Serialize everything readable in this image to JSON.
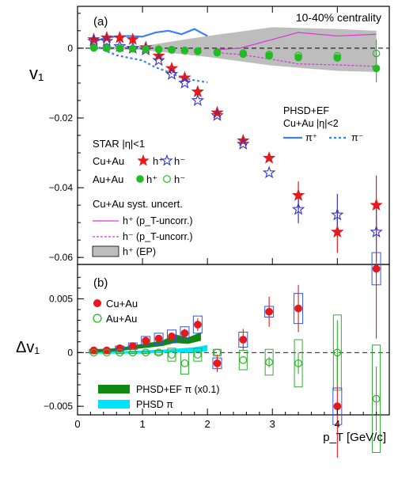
{
  "colors": {
    "cuau_h": "#e41a1c",
    "star_hm": "#3333cc",
    "auau": "#22bb22",
    "phsd_pi": "#3a7fff",
    "syst_pion": "#dd33dd",
    "ep_band": "#bdbdbd",
    "phsdef_dv": "#118811",
    "phsd_dv": "#00e5ff",
    "box_blue": "#3355dd",
    "box_green": "#33aa33"
  },
  "chart_data": [
    {
      "type": "scatter",
      "panel_label": "(a)",
      "annotation": "10-40% centrality",
      "ylabel": "v₁",
      "xlim": [
        0,
        4.8
      ],
      "ylim": [
        -0.062,
        0.012
      ],
      "y_ticks": [
        0,
        -0.02,
        -0.04,
        -0.06
      ],
      "y_tick_labels": [
        "0",
        "−0.02",
        "−0.04",
        "−0.06"
      ],
      "legend_star": {
        "header": "STAR |η|<1",
        "cuau_label": "Cu+Au",
        "auau_label": "Au+Au",
        "hplus": "h⁺",
        "hminus": "h⁻"
      },
      "legend_syst": {
        "header": "Cu+Au syst. uncert.",
        "hplus_uncorr": "h⁺ (p_T-uncorr.)",
        "hminus_uncorr": "h⁻ (p_T-uncorr.)",
        "ep": "h⁺ (EP)"
      },
      "legend_model": {
        "header": "PHSD+EF",
        "system": "Cu+Au |η|<2",
        "piplus": "π⁺",
        "piminus": "π⁻"
      },
      "series": [
        {
          "name": "Cu+Au h⁺",
          "x": [
            0.25,
            0.45,
            0.65,
            0.85,
            1.05,
            1.25,
            1.45,
            1.65,
            1.85,
            2.15,
            2.55,
            2.95,
            3.4,
            4.0,
            4.6
          ],
          "y": [
            0.0025,
            0.003,
            0.003,
            0.0025,
            0.0002,
            -0.0022,
            -0.0058,
            -0.0085,
            -0.0125,
            -0.0185,
            -0.0265,
            -0.0315,
            -0.0422,
            -0.0527,
            -0.045
          ],
          "yerr": [
            0,
            0,
            0,
            0,
            0,
            0,
            0,
            0,
            0,
            0,
            0,
            0,
            0.004,
            0.006,
            0.0085
          ]
        },
        {
          "name": "Cu+Au h⁻",
          "x": [
            0.25,
            0.45,
            0.65,
            0.85,
            1.05,
            1.25,
            1.45,
            1.65,
            1.85,
            2.15,
            2.55,
            2.95,
            3.4,
            4.0,
            4.6
          ],
          "y": [
            0.002,
            0.002,
            0.0005,
            0.0,
            -0.0005,
            -0.0035,
            -0.0075,
            -0.01,
            -0.015,
            -0.0193,
            -0.0275,
            -0.0357,
            -0.0462,
            -0.0478,
            -0.0527
          ],
          "yerr": [
            0,
            0,
            0,
            0,
            0,
            0,
            0,
            0,
            0,
            0,
            0,
            0,
            0.004,
            0.006,
            0.0085
          ]
        },
        {
          "name": "Au+Au h⁺",
          "x": [
            0.25,
            0.45,
            0.65,
            0.85,
            1.05,
            1.25,
            1.45,
            1.65,
            1.85,
            2.15,
            2.55,
            2.95,
            3.4,
            4.0,
            4.6
          ],
          "y": [
            0.0001,
            0.0,
            -0.0001,
            -0.0002,
            -0.0003,
            -0.0004,
            -0.0005,
            -0.0007,
            -0.0009,
            -0.0013,
            -0.0017,
            -0.0022,
            -0.0027,
            -0.0028,
            -0.0058
          ],
          "yerr": [
            0,
            0,
            0,
            0,
            0,
            0,
            0,
            0,
            0,
            0,
            0,
            0,
            0,
            0,
            0.004
          ]
        },
        {
          "name": "Au+Au h⁻",
          "x": [
            0.25,
            0.45,
            0.65,
            0.85,
            1.05,
            1.25,
            1.45,
            1.65,
            1.85,
            2.15,
            2.55,
            2.95,
            3.4,
            4.0,
            4.6
          ],
          "y": [
            0.0001,
            0.0,
            0.0,
            -0.0001,
            -0.0002,
            -0.0003,
            -0.0004,
            -0.0006,
            -0.0008,
            -0.0011,
            -0.0014,
            -0.0018,
            -0.0021,
            -0.0022,
            -0.0015
          ],
          "yerr": [
            0,
            0,
            0,
            0,
            0,
            0,
            0,
            0,
            0,
            0,
            0,
            0,
            0,
            0,
            0.004
          ]
        }
      ],
      "model_curves": [
        {
          "name": "π⁺",
          "x": [
            0.2,
            0.4,
            0.6,
            0.8,
            1.0,
            1.2,
            1.4,
            1.6,
            1.8,
            2.0
          ],
          "y": [
            0.0015,
            0.0028,
            0.0034,
            0.0035,
            0.0033,
            0.0045,
            0.005,
            0.004,
            0.0055,
            0.0035
          ]
        },
        {
          "name": "π⁻",
          "x": [
            0.2,
            0.4,
            0.6,
            0.8,
            1.0,
            1.2,
            1.4,
            1.6,
            1.8,
            2.0
          ],
          "y": [
            0.0015,
            -0.0005,
            -0.002,
            -0.0028,
            -0.0035,
            -0.0055,
            -0.0068,
            -0.0085,
            -0.0092,
            -0.0098
          ]
        }
      ],
      "syst_uncorr_upper": {
        "x": [
          2.1,
          2.5,
          3.0,
          3.4,
          4.0,
          4.6
        ],
        "y": [
          -0.0005,
          0.0,
          0.0025,
          0.0045,
          0.0035,
          0.004
        ]
      },
      "syst_uncorr_lower": {
        "x": [
          2.1,
          2.5,
          3.0,
          3.4,
          4.0,
          4.6
        ],
        "y": [
          -0.0012,
          -0.0018,
          -0.0032,
          -0.0045,
          -0.0048,
          -0.0052
        ]
      },
      "ep_band": {
        "x": [
          0.2,
          1.0,
          2.0,
          3.0,
          4.0,
          4.6
        ],
        "upper": [
          0.0004,
          0.0006,
          0.0035,
          0.006,
          0.0055,
          0.005
        ],
        "lower": [
          -0.0003,
          -0.0005,
          -0.0025,
          -0.005,
          -0.0065,
          -0.0068
        ]
      }
    },
    {
      "type": "scatter",
      "panel_label": "(b)",
      "ylabel": "Δv₁",
      "xlabel": "p_T [GeV/c]",
      "xlim": [
        0,
        4.8
      ],
      "ylim": [
        -0.0058,
        0.0082
      ],
      "x_ticks": [
        0,
        1,
        2,
        3,
        4
      ],
      "y_ticks": [
        0.005,
        0,
        -0.005
      ],
      "y_tick_labels": [
        "0.005",
        "0",
        "−0.005"
      ],
      "legend_data": {
        "cuau": "Cu+Au",
        "auau": "Au+Au"
      },
      "legend_model": {
        "phsdef": "PHSD+EF π (x0.1)",
        "phsd": "PHSD π"
      },
      "series": [
        {
          "name": "Cu+Au",
          "x": [
            0.25,
            0.45,
            0.65,
            0.85,
            1.05,
            1.25,
            1.45,
            1.65,
            1.85,
            2.15,
            2.55,
            2.95,
            3.4,
            4.0,
            4.6
          ],
          "y": [
            0.0002,
            0.0002,
            0.0004,
            0.0006,
            0.0011,
            0.0013,
            0.0015,
            0.0018,
            0.0026,
            -0.001,
            0.0012,
            0.0038,
            0.0041,
            -0.005,
            0.0078
          ],
          "yerr": [
            0,
            0,
            0,
            0,
            0.0002,
            0.0002,
            0.0003,
            0.0004,
            0.0006,
            0.0008,
            0.001,
            0.0014,
            0.0022,
            0.0048,
            0.0065
          ],
          "syst": [
            0.0001,
            0.0001,
            0.0002,
            0.0003,
            0.0004,
            0.0005,
            0.0006,
            0.0006,
            0.0008,
            0.0005,
            0.0007,
            0.0005,
            0.0014,
            0.0017,
            0.0015
          ]
        },
        {
          "name": "Au+Au",
          "x": [
            0.25,
            0.45,
            0.65,
            0.85,
            1.05,
            1.25,
            1.45,
            1.65,
            1.85,
            2.15,
            2.55,
            2.95,
            3.4,
            4.0,
            4.6
          ],
          "y": [
            0.0,
            0.0,
            0.0,
            0.0,
            0.0,
            0.0,
            -0.0002,
            -0.001,
            -0.0002,
            0.0,
            -0.0007,
            -0.0009,
            -0.001,
            0.0,
            -0.0043
          ],
          "yerr": [
            0,
            0,
            0,
            0,
            0,
            0,
            0,
            0,
            0,
            0,
            0,
            0.0005,
            0.001,
            0.003,
            0.003
          ],
          "syst": [
            0.0001,
            0.0001,
            0.0001,
            0.0001,
            0.0001,
            0.0002,
            0.0006,
            0.001,
            0.0006,
            0.0003,
            0.0009,
            0.0012,
            0.0022,
            0.0035,
            0.005
          ]
        }
      ],
      "band_phsdef": {
        "x": [
          0.2,
          0.6,
          1.0,
          1.3,
          1.5,
          1.7,
          1.9
        ],
        "upper": [
          0.0003,
          0.0004,
          0.0008,
          0.0011,
          0.0017,
          0.0014,
          0.0019
        ],
        "lower": [
          0.0,
          0.0001,
          0.0004,
          0.0006,
          0.0009,
          0.0008,
          0.0011
        ]
      },
      "band_phsd": {
        "x": [
          0.2,
          0.6,
          1.0,
          1.4,
          1.8,
          2.0
        ],
        "upper": [
          0.0001,
          0.0001,
          0.0002,
          0.0003,
          0.0005,
          0.0007
        ],
        "lower": [
          -0.0001,
          -0.0001,
          -0.0001,
          0.0,
          0.0,
          0.0001
        ]
      }
    }
  ]
}
